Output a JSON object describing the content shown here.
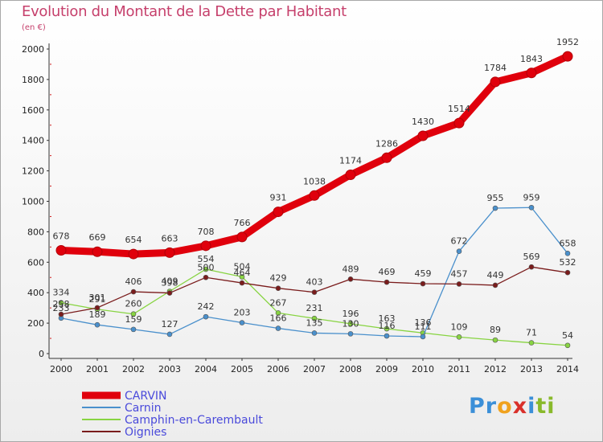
{
  "title": "Evolution du Montant de la Dette par Habitant",
  "subtitle": "(en €)",
  "logo": {
    "letters": [
      "P",
      "r",
      "o",
      "x",
      "i",
      "t",
      "i"
    ],
    "colors": [
      "#3b8fd8",
      "#3b8fd8",
      "#f0a21e",
      "#d9302a",
      "#3b8fd8",
      "#89b92b",
      "#89b92b"
    ]
  },
  "chart_data": {
    "type": "line",
    "x": [
      "2000",
      "2001",
      "2002",
      "2003",
      "2004",
      "2005",
      "2006",
      "2007",
      "2008",
      "2009",
      "2010",
      "2011",
      "2012",
      "2013",
      "2014"
    ],
    "ylim": [
      0,
      2000
    ],
    "yticks": [
      "0",
      "200",
      "400",
      "600",
      "800",
      "1000",
      "1200",
      "1400",
      "1600",
      "1800",
      "2000"
    ],
    "grid": false,
    "legend_position": "bottom-left",
    "series": [
      {
        "name": "CARVIN",
        "color": "#e0000c",
        "values": [
          678,
          669,
          654,
          663,
          708,
          766,
          931,
          1038,
          1174,
          1286,
          1430,
          1514,
          1784,
          1843,
          1952
        ]
      },
      {
        "name": "Carnin",
        "color": "#4a90cc",
        "values": [
          233,
          189,
          159,
          127,
          242,
          203,
          166,
          135,
          130,
          116,
          111,
          672,
          955,
          959,
          658
        ]
      },
      {
        "name": "Camphin-en-Carembault",
        "color": "#88d442",
        "values": [
          334,
          291,
          260,
          409,
          554,
          504,
          267,
          231,
          196,
          163,
          136,
          109,
          89,
          71,
          54
        ]
      },
      {
        "name": "Oignies",
        "color": "#7a1c1c",
        "values": [
          258,
          301,
          406,
          398,
          500,
          464,
          429,
          403,
          489,
          469,
          459,
          457,
          449,
          569,
          532
        ]
      }
    ]
  }
}
